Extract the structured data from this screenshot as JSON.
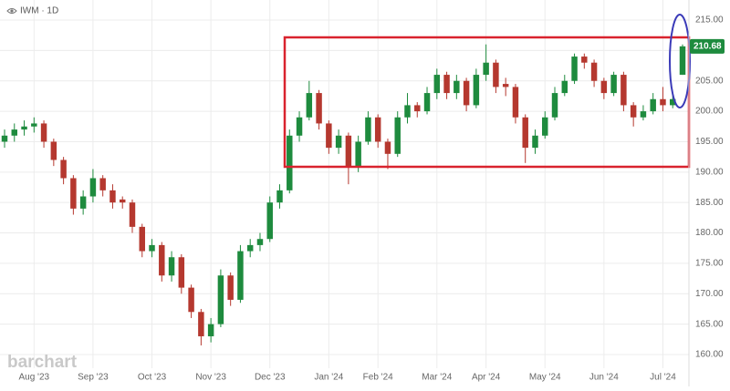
{
  "chart_data": {
    "type": "candlestick",
    "title": "IWM · 1D",
    "watermark": "barchart",
    "categories": [
      null,
      null,
      null,
      "Aug '23",
      null,
      null,
      null,
      null,
      null,
      "Sep '23",
      null,
      null,
      null,
      null,
      null,
      "Oct '23",
      null,
      null,
      null,
      null,
      null,
      "Nov '23",
      null,
      null,
      null,
      null,
      null,
      "Dec '23",
      null,
      null,
      null,
      null,
      null,
      "Jan '24",
      null,
      null,
      null,
      null,
      "Feb '24",
      null,
      null,
      null,
      null,
      null,
      "Mar '24",
      null,
      null,
      null,
      null,
      "Apr '24",
      null,
      null,
      null,
      null,
      null,
      "May '24",
      null,
      null,
      null,
      null,
      null,
      "Jun '24",
      null,
      null,
      null,
      null,
      null,
      "Jul '24",
      null,
      null
    ],
    "open": [
      195,
      196,
      197,
      197.5,
      198,
      195,
      192,
      189,
      184,
      186,
      189,
      187,
      185.5,
      185,
      181,
      177,
      178,
      173,
      176,
      171,
      167,
      163,
      165,
      173,
      169,
      177,
      178,
      179,
      185,
      187,
      196,
      199,
      203,
      198,
      194,
      196,
      191,
      195,
      199,
      195,
      193,
      199,
      201,
      200,
      203,
      206,
      203,
      205,
      201,
      206,
      208,
      204.5,
      204,
      199,
      194,
      196,
      199,
      203,
      205,
      209,
      208,
      205,
      203,
      206,
      201,
      199,
      200,
      202,
      201,
      206
    ],
    "high": [
      197,
      198,
      198.5,
      199,
      198.5,
      195.5,
      192.5,
      189.5,
      187,
      190.5,
      189.5,
      188,
      186,
      185.5,
      181.5,
      179,
      178.5,
      177,
      176.5,
      171.5,
      167.5,
      166,
      174,
      173.5,
      178,
      179,
      180,
      186,
      188,
      197,
      200,
      205,
      203.5,
      198.5,
      197,
      196.5,
      196,
      200,
      199.5,
      195.5,
      200,
      203,
      201.5,
      204,
      207,
      206.5,
      206,
      205.5,
      207,
      211,
      208.5,
      205.5,
      204.5,
      199.5,
      197,
      200,
      204,
      206,
      209.5,
      209.5,
      208.5,
      205.5,
      206.5,
      206.5,
      201.5,
      201,
      203,
      204,
      203,
      211
    ],
    "low": [
      194,
      195,
      196,
      196.5,
      194,
      191,
      188,
      183,
      183,
      185,
      186,
      184,
      184,
      180,
      176,
      176,
      172,
      172,
      170,
      166,
      161.5,
      162,
      164.5,
      168,
      168.5,
      176,
      177,
      178.5,
      184,
      186.5,
      195,
      198.5,
      197,
      193,
      193,
      188,
      190,
      194.5,
      194,
      190.5,
      192.5,
      198,
      199,
      199.5,
      202,
      202,
      202,
      200,
      200.5,
      205,
      203,
      202.5,
      198,
      191.5,
      193,
      195.5,
      198.5,
      202.5,
      204.5,
      207,
      204,
      202,
      202.5,
      200,
      197.5,
      198.5,
      199.5,
      200,
      200.5,
      206
    ],
    "close": [
      196,
      197,
      197.5,
      198,
      195,
      192,
      189,
      184,
      186,
      189,
      187,
      185,
      185,
      181,
      177,
      178,
      173,
      176,
      171,
      167,
      163,
      165,
      173,
      169,
      177,
      178,
      179,
      185,
      187,
      196,
      199,
      203,
      198,
      194,
      196,
      191,
      195,
      199,
      195,
      193,
      199,
      201,
      200,
      203,
      206,
      203,
      205,
      201,
      206,
      208,
      204,
      204,
      199,
      194,
      196,
      199,
      203,
      205,
      209,
      208,
      205,
      203,
      206,
      201,
      199,
      200,
      202,
      201,
      202,
      210.68
    ],
    "up_color": "#1e8b3e",
    "down_color": "#b5382f",
    "ylim": [
      158.5,
      218.3
    ],
    "yticks": [
      {
        "value": 160,
        "label": "160.00"
      },
      {
        "value": 165,
        "label": "165.00"
      },
      {
        "value": 170,
        "label": "170.00"
      },
      {
        "value": 175,
        "label": "175.00"
      },
      {
        "value": 180,
        "label": "180.00"
      },
      {
        "value": 185,
        "label": "185.00"
      },
      {
        "value": 190,
        "label": "190.00"
      },
      {
        "value": 195,
        "label": "195.00"
      },
      {
        "value": 200,
        "label": "200.00"
      },
      {
        "value": 205,
        "label": "205.00"
      },
      {
        "value": 210,
        "label": "210.00"
      },
      {
        "value": 215,
        "label": "215.00"
      }
    ],
    "grid": true
  }
}
